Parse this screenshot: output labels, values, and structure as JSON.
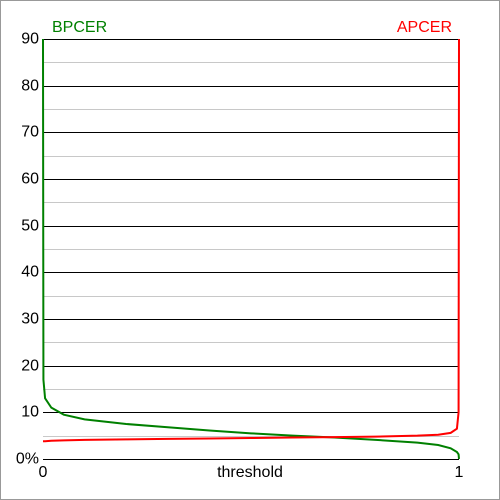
{
  "chart_data": {
    "type": "line",
    "x": [
      0,
      0.001,
      0.005,
      0.02,
      0.05,
      0.1,
      0.2,
      0.3,
      0.4,
      0.5,
      0.6,
      0.7,
      0.8,
      0.9,
      0.95,
      0.98,
      0.995,
      0.999,
      1
    ],
    "series": [
      {
        "name": "BPCER",
        "color": "#008000",
        "values": [
          90,
          17,
          13,
          11,
          9.5,
          8.5,
          7.5,
          6.8,
          6.1,
          5.5,
          5,
          4.6,
          4.1,
          3.5,
          3,
          2.3,
          1.5,
          1,
          0
        ]
      },
      {
        "name": "APCER",
        "color": "#ff0000",
        "values": [
          3.8,
          3.8,
          3.8,
          3.9,
          4,
          4.1,
          4.2,
          4.3,
          4.4,
          4.5,
          4.6,
          4.7,
          4.8,
          5,
          5.2,
          5.6,
          6.5,
          10,
          90
        ]
      }
    ],
    "x_label": "threshold",
    "xlim": [
      0,
      1
    ],
    "xticks": [
      0,
      1
    ],
    "ylim": [
      0,
      90
    ],
    "yticks": [
      {
        "value": 0,
        "label": "0%"
      },
      10,
      20,
      30,
      40,
      50,
      60,
      70,
      80,
      90
    ],
    "minor_yticks": [
      5,
      15,
      25,
      35,
      45,
      55,
      65,
      75,
      85
    ],
    "grid": true
  }
}
